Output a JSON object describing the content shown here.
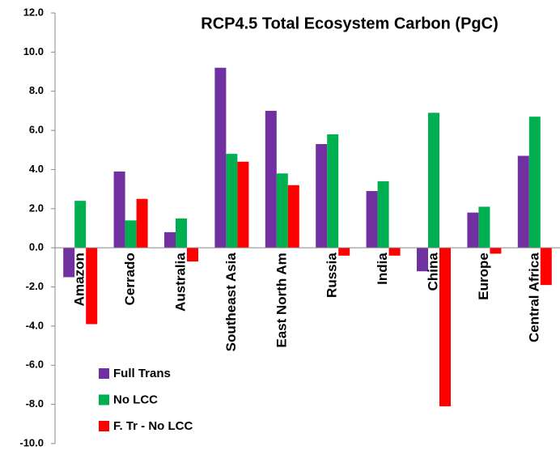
{
  "chart_data": {
    "type": "bar",
    "title": "RCP4.5 Total Ecosystem Carbon (PgC)",
    "categories": [
      "Amazon",
      "Cerrado",
      "Australia",
      "Southeast Asia",
      "East North Am",
      "Russia",
      "India",
      "China",
      "Europe",
      "Central Africa"
    ],
    "series": [
      {
        "name": "Full Trans",
        "color": "#7030a0",
        "values": [
          -1.5,
          3.9,
          0.8,
          9.2,
          7.0,
          5.3,
          2.9,
          -1.2,
          1.8,
          4.7
        ]
      },
      {
        "name": "No LCC",
        "color": "#00b050",
        "values": [
          2.4,
          1.4,
          1.5,
          4.8,
          3.8,
          5.8,
          3.4,
          6.9,
          2.1,
          6.7
        ]
      },
      {
        "name": "F. Tr - No LCC",
        "color": "#ff0000",
        "values": [
          -3.9,
          2.5,
          -0.7,
          4.4,
          3.2,
          -0.4,
          -0.4,
          -8.1,
          -0.3,
          -1.9
        ]
      }
    ],
    "ylim": [
      -10,
      12
    ],
    "yticks": [
      {
        "value": -10,
        "label": "-10.0"
      },
      {
        "value": -8,
        "label": "-8.0"
      },
      {
        "value": -6,
        "label": "-6.0"
      },
      {
        "value": -4,
        "label": "-4.0"
      },
      {
        "value": -2,
        "label": "-2.0"
      },
      {
        "value": 0,
        "label": "0.0"
      },
      {
        "value": 2,
        "label": "2.0"
      },
      {
        "value": 4,
        "label": "4.0"
      },
      {
        "value": 6,
        "label": "6.0"
      },
      {
        "value": 8,
        "label": "8.0"
      },
      {
        "value": 10,
        "label": "10.0"
      },
      {
        "value": 12,
        "label": "12.0"
      }
    ],
    "legend": "lower-left"
  }
}
